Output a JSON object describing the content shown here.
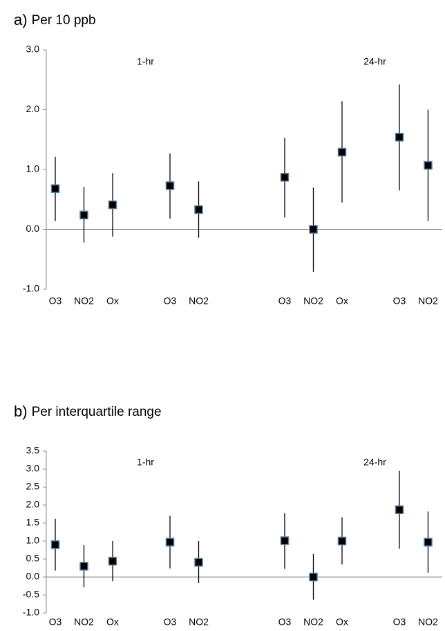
{
  "chart_data": [
    {
      "type": "errorbar",
      "panel_label": "a)",
      "title": "Per 10 ppb",
      "categories": [
        "O3",
        "NO2",
        "Ox",
        null,
        "O3",
        "NO2",
        null,
        null,
        "O3",
        "NO2",
        "Ox",
        null,
        "O3",
        "NO2"
      ],
      "values": [
        0.68,
        0.24,
        0.41,
        null,
        0.73,
        0.33,
        null,
        null,
        0.87,
        0.0,
        1.29,
        null,
        1.54,
        1.07
      ],
      "lower": [
        0.14,
        -0.22,
        -0.12,
        null,
        0.18,
        -0.14,
        null,
        null,
        0.2,
        -0.71,
        0.45,
        null,
        0.65,
        0.14
      ],
      "upper": [
        1.21,
        0.71,
        0.94,
        null,
        1.27,
        0.8,
        null,
        null,
        1.53,
        0.7,
        2.14,
        null,
        2.42,
        2.0
      ],
      "annotations": [
        "1-hr",
        "24-hr"
      ],
      "color": "#000000",
      "edgecolor": "#5b7fa6",
      "errorcolor": "#000000",
      "ylim": [
        -1,
        3
      ],
      "yticks": [
        {
          "value": -1,
          "label": "-1.0"
        },
        {
          "value": 0,
          "label": "0.0"
        },
        {
          "value": 1,
          "label": "1.0"
        },
        {
          "value": 2,
          "label": "2.0"
        },
        {
          "value": 3,
          "label": "3.0"
        }
      ],
      "grid": false
    },
    {
      "type": "errorbar",
      "panel_label": "b)",
      "title": "Per interquartile range",
      "categories": [
        "O3",
        "NO2",
        "Ox",
        null,
        "O3",
        "NO2",
        null,
        null,
        "O3",
        "NO2",
        "Ox",
        null,
        "O3",
        "NO2"
      ],
      "values": [
        0.9,
        0.3,
        0.44,
        null,
        0.97,
        0.41,
        null,
        null,
        1.01,
        0.0,
        1.0,
        null,
        1.87,
        0.97
      ],
      "lower": [
        0.18,
        -0.28,
        -0.12,
        null,
        0.24,
        -0.17,
        null,
        null,
        0.23,
        -0.63,
        0.35,
        null,
        0.79,
        0.12
      ],
      "upper": [
        1.62,
        0.89,
        1.0,
        null,
        1.7,
        1.0,
        null,
        null,
        1.78,
        0.64,
        1.66,
        null,
        2.95,
        1.82
      ],
      "annotations": [
        "1-hr",
        "24-hr"
      ],
      "color": "#000000",
      "edgecolor": "#5b7fa6",
      "errorcolor": "#000000",
      "ylim": [
        -1,
        3.5
      ],
      "yticks": [
        {
          "value": -1,
          "label": "-1.0"
        },
        {
          "value": -0.5,
          "label": "-0.5"
        },
        {
          "value": 0,
          "label": "0.0"
        },
        {
          "value": 0.5,
          "label": "0.5"
        },
        {
          "value": 1,
          "label": "1.0"
        },
        {
          "value": 1.5,
          "label": "1.5"
        },
        {
          "value": 2,
          "label": "2.0"
        },
        {
          "value": 2.5,
          "label": "2.5"
        },
        {
          "value": 3,
          "label": "3.0"
        },
        {
          "value": 3.5,
          "label": "3.5"
        }
      ],
      "grid": false
    }
  ]
}
